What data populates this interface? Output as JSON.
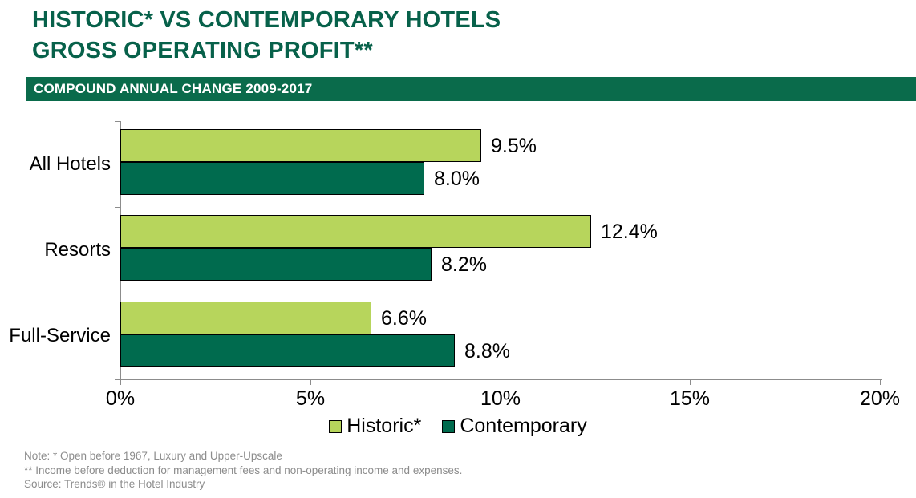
{
  "title": {
    "line1": "HISTORIC* VS CONTEMPORARY HOTELS",
    "line2": "GROSS OPERATING PROFIT**"
  },
  "banner": {
    "label": "COMPOUND ANNUAL CHANGE 2009-2017"
  },
  "colors": {
    "title_green": "#07614A",
    "banner_bg": "#0A6B4B",
    "historic": "#B7D55C",
    "contemporary": "#006B4E",
    "axis_gray": "#8C8C8C",
    "note_gray": "#8C8C8C",
    "label_black": "#000000"
  },
  "chart_data": {
    "type": "bar",
    "orientation": "horizontal",
    "title": "HISTORIC* VS CONTEMPORARY HOTELS GROSS OPERATING PROFIT**",
    "subtitle": "COMPOUND ANNUAL CHANGE 2009-2017",
    "categories": [
      "All Hotels",
      "Resorts",
      "Full-Service"
    ],
    "series": [
      {
        "name": "Historic*",
        "color_key": "historic",
        "values": [
          9.5,
          12.4,
          6.6
        ],
        "labels": [
          "9.5%",
          "12.4%",
          "6.6%"
        ]
      },
      {
        "name": "Contemporary",
        "color_key": "contemporary",
        "values": [
          8.0,
          8.2,
          8.8
        ],
        "labels": [
          "8.0%",
          "8.2%",
          "8.8%"
        ]
      }
    ],
    "xlim": [
      0,
      20
    ],
    "x_ticks": [
      "0%",
      "5%",
      "10%",
      "15%",
      "20%"
    ],
    "xlabel": "",
    "ylabel": "",
    "grid": false,
    "legend_position": "bottom"
  },
  "notes": {
    "line1": "Note: *  Open before 1967, Luxury and Upper-Upscale",
    "line2": "**  Income before deduction for management fees and non-operating income and expenses.",
    "line3": "Source: Trends® in the Hotel Industry"
  }
}
